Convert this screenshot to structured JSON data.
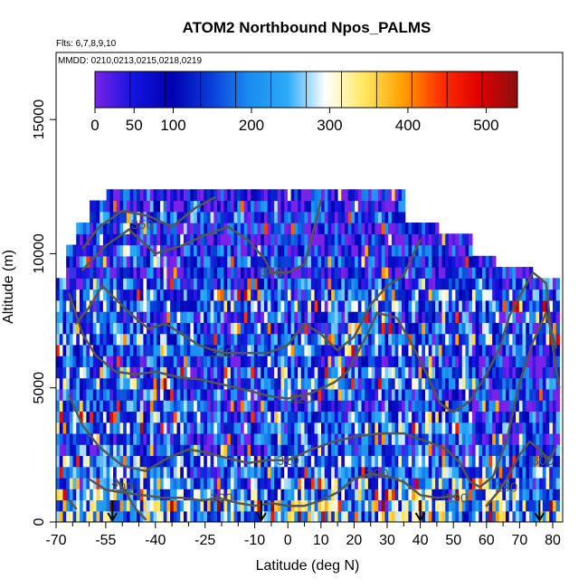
{
  "chart_data": {
    "type": "heatmap",
    "title": "ATOM2 Northbound Npos_PALMS",
    "annotations": {
      "flights": "Flts: 6,7,8,9,10",
      "dates": "MMDD: 0210,0213,0215,0218,0219"
    },
    "xlabel": "Latitude (deg N)",
    "ylabel": "Altitude (m)",
    "xlim": [
      -70,
      83
    ],
    "ylim": [
      0,
      17500
    ],
    "x_ticks": [
      -70,
      -55,
      -40,
      -25,
      -10,
      0,
      10,
      20,
      30,
      40,
      50,
      60,
      70,
      80
    ],
    "x_minor_ticks": [
      -65,
      -60,
      -50,
      -45,
      -35,
      -30,
      -20,
      -15,
      -5,
      5,
      15,
      25,
      35,
      45,
      55,
      65,
      75
    ],
    "y_ticks": [
      0,
      5000,
      10000,
      15000
    ],
    "colorbar": {
      "range": [
        0,
        540
      ],
      "ticks": [
        0,
        50,
        100,
        200,
        300,
        400,
        500
      ],
      "colors": [
        "#7a22e8",
        "#1414e0",
        "#0000b0",
        "#0a3cd8",
        "#1a8cf0",
        "#2aaaf8",
        "#ffffff",
        "#ffe860",
        "#ffa000",
        "#ff3000",
        "#e00000",
        "#8a1010"
      ]
    },
    "flight_track_arrows_lat": [
      -53,
      -8,
      40,
      76
    ],
    "contour_color": "#555555",
    "contour_labels": [
      {
        "text": "350",
        "lat": -44,
        "alt": 11100
      },
      {
        "text": "340",
        "lat": -5,
        "alt": 9300
      },
      {
        "text": "330",
        "lat": -20,
        "alt": 6300
      },
      {
        "text": "320",
        "lat": 4,
        "alt": 4600
      },
      {
        "text": "310",
        "lat": 0,
        "alt": 2300
      },
      {
        "text": "300",
        "lat": -20,
        "alt": 900
      },
      {
        "text": "300",
        "lat": 27,
        "alt": 1800
      },
      {
        "text": "290",
        "lat": 51,
        "alt": 900
      },
      {
        "text": "290",
        "lat": -50,
        "alt": 1300
      },
      {
        "text": "290",
        "lat": 66,
        "alt": 1300
      },
      {
        "text": "300",
        "lat": 77,
        "alt": 2300
      }
    ],
    "contours": [
      {
        "level": 350,
        "points": [
          [
            -62,
            10200
          ],
          [
            -57,
            11000
          ],
          [
            -50,
            11600
          ],
          [
            -42,
            11400
          ],
          [
            -35,
            11000
          ],
          [
            -28,
            11700
          ],
          [
            -22,
            12100
          ]
        ]
      },
      {
        "level": 340,
        "points": [
          [
            -62,
            9400
          ],
          [
            -55,
            10300
          ],
          [
            -48,
            10900
          ],
          [
            -40,
            10000
          ],
          [
            -32,
            10300
          ],
          [
            -25,
            10700
          ],
          [
            -18,
            11000
          ],
          [
            -12,
            10500
          ],
          [
            -7,
            9800
          ],
          [
            -5,
            9300
          ],
          [
            0,
            9300
          ],
          [
            5,
            9600
          ],
          [
            8,
            11000
          ],
          [
            10,
            12000
          ]
        ]
      },
      {
        "level": 330,
        "points": [
          [
            -64,
            7400
          ],
          [
            -60,
            8000
          ],
          [
            -56,
            8800
          ],
          [
            -52,
            8300
          ],
          [
            -47,
            7700
          ],
          [
            -42,
            7200
          ],
          [
            -37,
            7400
          ],
          [
            -32,
            7000
          ],
          [
            -27,
            6600
          ],
          [
            -20,
            6300
          ],
          [
            -13,
            6300
          ],
          [
            -6,
            6300
          ],
          [
            0,
            6600
          ],
          [
            5,
            7400
          ],
          [
            10,
            7000
          ],
          [
            15,
            6400
          ],
          [
            20,
            6900
          ],
          [
            25,
            8100
          ],
          [
            30,
            8800
          ],
          [
            35,
            9200
          ],
          [
            38,
            10000
          ],
          [
            40,
            10500
          ]
        ]
      },
      {
        "level": 320,
        "points": [
          [
            -66,
            8500
          ],
          [
            -62,
            7000
          ],
          [
            -58,
            6200
          ],
          [
            -52,
            5600
          ],
          [
            -46,
            5500
          ],
          [
            -40,
            5600
          ],
          [
            -33,
            5400
          ],
          [
            -26,
            5300
          ],
          [
            -19,
            5100
          ],
          [
            -12,
            4900
          ],
          [
            -6,
            4700
          ],
          [
            0,
            4600
          ],
          [
            7,
            4800
          ],
          [
            14,
            5200
          ],
          [
            18,
            5600
          ],
          [
            24,
            7000
          ],
          [
            27,
            7800
          ],
          [
            33,
            7600
          ],
          [
            38,
            6500
          ],
          [
            42,
            5500
          ],
          [
            46,
            4400
          ],
          [
            50,
            4100
          ],
          [
            55,
            4500
          ],
          [
            60,
            5500
          ],
          [
            64,
            6500
          ],
          [
            67,
            7700
          ],
          [
            70,
            8400
          ],
          [
            74,
            9300
          ],
          [
            78,
            8900
          ],
          [
            80,
            6500
          ],
          [
            82,
            5000
          ]
        ]
      },
      {
        "level": 310,
        "points": [
          [
            -66,
            4700
          ],
          [
            -62,
            3600
          ],
          [
            -57,
            2800
          ],
          [
            -50,
            2100
          ],
          [
            -43,
            1900
          ],
          [
            -36,
            2400
          ],
          [
            -30,
            2700
          ],
          [
            -25,
            2600
          ],
          [
            -19,
            2400
          ],
          [
            -12,
            2200
          ],
          [
            -6,
            2300
          ],
          [
            0,
            2300
          ],
          [
            7,
            2700
          ],
          [
            14,
            3000
          ],
          [
            21,
            3200
          ],
          [
            28,
            3300
          ],
          [
            35,
            3300
          ],
          [
            42,
            3000
          ],
          [
            48,
            2700
          ],
          [
            52,
            2200
          ],
          [
            55,
            1500
          ],
          [
            58,
            1300
          ],
          [
            62,
            1700
          ],
          [
            66,
            3000
          ],
          [
            70,
            5200
          ],
          [
            74,
            6700
          ],
          [
            78,
            7800
          ],
          [
            81,
            6500
          ]
        ]
      },
      {
        "level": 300,
        "points": [
          [
            -60,
            1600
          ],
          [
            -55,
            1200
          ],
          [
            -50,
            1100
          ],
          [
            -44,
            1000
          ],
          [
            -38,
            900
          ],
          [
            -32,
            900
          ],
          [
            -26,
            800
          ],
          [
            -21,
            900
          ],
          [
            -15,
            700
          ],
          [
            -10,
            600
          ],
          [
            -5,
            700
          ],
          [
            0,
            600
          ],
          [
            5,
            600
          ],
          [
            10,
            800
          ],
          [
            15,
            1100
          ],
          [
            20,
            1600
          ],
          [
            25,
            1800
          ],
          [
            30,
            1700
          ],
          [
            35,
            1500
          ],
          [
            40,
            1000
          ],
          [
            45,
            900
          ],
          [
            50,
            950
          ]
        ]
      },
      {
        "level": 290,
        "points": [
          [
            -52,
            1600
          ],
          [
            -49,
            1100
          ],
          [
            -46,
            500
          ],
          [
            -43,
            100
          ]
        ]
      },
      {
        "level": 290,
        "points": [
          [
            -66,
            800
          ],
          [
            -64,
            500
          ]
        ]
      },
      {
        "level": 290,
        "points": [
          [
            60,
            600
          ],
          [
            64,
            1200
          ],
          [
            67,
            1800
          ],
          [
            70,
            2500
          ],
          [
            73,
            3000
          ],
          [
            76,
            2700
          ],
          [
            79,
            2300
          ],
          [
            81,
            2800
          ]
        ]
      }
    ]
  }
}
